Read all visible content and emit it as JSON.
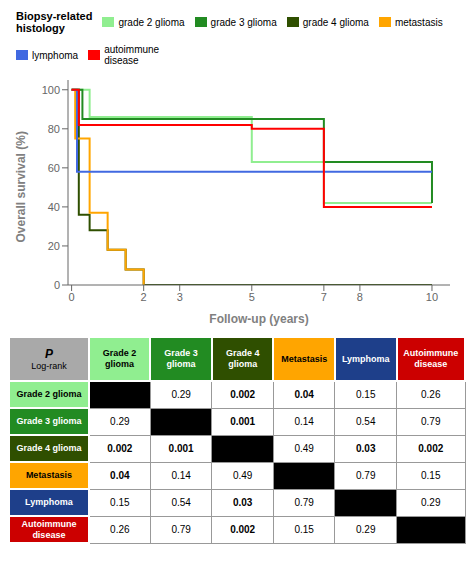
{
  "chart_data": [
    {
      "type": "line",
      "line_style": "step",
      "title": "Biopsy-related\nhistology",
      "xlabel": "Follow-up (years)",
      "ylabel": "Overall survival (%)",
      "xlim": [
        -0.1,
        10.5
      ],
      "ylim": [
        0,
        105
      ],
      "xticks": [
        0,
        2,
        3,
        5,
        7,
        8,
        10
      ],
      "yticks": [
        0,
        20,
        40,
        60,
        80,
        100
      ],
      "grid": false,
      "legend": "top",
      "series": [
        {
          "name": "grade 2 glioma",
          "color": "#90EE90",
          "x": [
            0,
            0.5,
            3,
            5,
            7,
            10
          ],
          "values": [
            100,
            86,
            86,
            63,
            42,
            42
          ]
        },
        {
          "name": "grade 3 glioma",
          "color": "#228B22",
          "x": [
            0,
            0.3,
            5,
            7,
            10
          ],
          "values": [
            100,
            85,
            85,
            63,
            42
          ]
        },
        {
          "name": "grade 4 glioma",
          "color": "#2F4F00",
          "x": [
            0,
            0.2,
            0.5,
            1.0,
            1.5,
            2.0,
            10
          ],
          "values": [
            100,
            36,
            28,
            18,
            8,
            0,
            0
          ]
        },
        {
          "name": "metastasis",
          "color": "#FFA500",
          "x": [
            0,
            0.1,
            0.5,
            1.0,
            1.5,
            2.0
          ],
          "values": [
            100,
            75,
            37,
            18,
            8,
            0
          ]
        },
        {
          "name": "lymphoma",
          "color": "#4169E1",
          "x": [
            0,
            0.15,
            10
          ],
          "values": [
            100,
            58,
            58
          ]
        },
        {
          "name": "autoimmune\ndisease",
          "color": "#FF0000",
          "x": [
            0,
            0.2,
            5,
            7,
            10
          ],
          "values": [
            100,
            82,
            80,
            40,
            40
          ]
        }
      ]
    },
    {
      "type": "table",
      "title": "P",
      "subtitle": "Log-rank",
      "columns": [
        "Grade 2\nglioma",
        "Grade 3\nglioma",
        "Grade 4\nglioma",
        "Metastasis",
        "Lymphoma",
        "Autoimmune\ndisease"
      ],
      "rows": [
        "Grade 2 glioma",
        "Grade 3 glioma",
        "Grade 4 glioma",
        "Metastasis",
        "Lymphoma",
        "Autoimmune\ndisease"
      ],
      "colors": [
        "#90EE90",
        "#228B22",
        "#2F4F00",
        "#FFA500",
        "#1E3F8A",
        "#CC0000"
      ],
      "cells": [
        [
          null,
          0.29,
          0.002,
          0.04,
          0.15,
          0.26
        ],
        [
          0.29,
          null,
          0.001,
          0.14,
          0.54,
          0.79
        ],
        [
          0.002,
          0.001,
          null,
          0.49,
          0.03,
          0.002
        ],
        [
          0.04,
          0.14,
          0.49,
          null,
          0.79,
          0.15
        ],
        [
          0.15,
          0.54,
          0.03,
          0.79,
          null,
          0.29
        ],
        [
          0.26,
          0.79,
          0.002,
          0.15,
          0.29,
          null
        ]
      ]
    }
  ]
}
